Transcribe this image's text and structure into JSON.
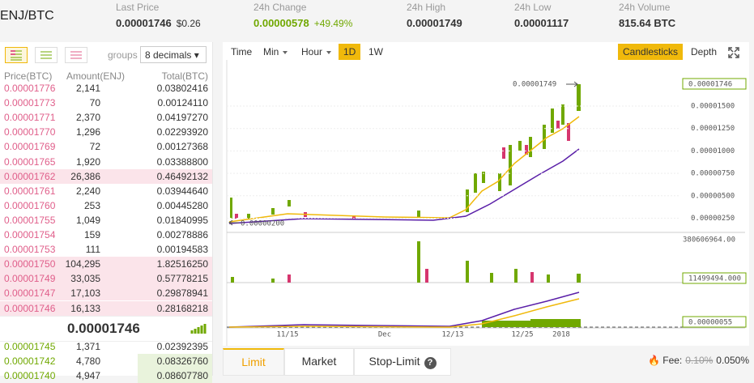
{
  "header": {
    "pair": "ENJ/BTC",
    "stats": [
      {
        "label": "Last Price",
        "value": "0.00001746",
        "extra": "$0.26"
      },
      {
        "label": "24h Change",
        "value": "0.00000578",
        "extra": "+49.49%"
      },
      {
        "label": "24h High",
        "value": "0.00001749"
      },
      {
        "label": "24h Low",
        "value": "0.00001117"
      },
      {
        "label": "24h Volume",
        "value": "815.64 BTC"
      }
    ]
  },
  "orderbook": {
    "groups": "groups",
    "decimals": "8 decimals ▾",
    "columns": [
      "Price(BTC)",
      "Amount(ENJ)",
      "Total(BTC)"
    ],
    "asks": [
      [
        "0.00001776",
        "2,141",
        "0.03802416"
      ],
      [
        "0.00001773",
        "70",
        "0.00124110"
      ],
      [
        "0.00001771",
        "2,370",
        "0.04197270"
      ],
      [
        "0.00001770",
        "1,296",
        "0.02293920"
      ],
      [
        "0.00001769",
        "72",
        "0.00127368"
      ],
      [
        "0.00001765",
        "1,920",
        "0.03388800"
      ],
      [
        "0.00001762",
        "26,386",
        "0.46492132"
      ],
      [
        "0.00001761",
        "2,240",
        "0.03944640"
      ],
      [
        "0.00001760",
        "253",
        "0.00445280"
      ],
      [
        "0.00001755",
        "1,049",
        "0.01840995"
      ],
      [
        "0.00001754",
        "159",
        "0.00278886"
      ],
      [
        "0.00001753",
        "111",
        "0.00194583"
      ],
      [
        "0.00001750",
        "104,295",
        "1.82516250"
      ],
      [
        "0.00001749",
        "33,035",
        "0.57778215"
      ],
      [
        "0.00001747",
        "17,103",
        "0.29878941"
      ],
      [
        "0.00001746",
        "16,133",
        "0.28168218"
      ]
    ],
    "last_price": "0.00001746",
    "bids": [
      [
        "0.00001745",
        "1,371",
        "0.02392395"
      ],
      [
        "0.00001742",
        "4,780",
        "0.08326760"
      ],
      [
        "0.00001740",
        "4,947",
        "0.08607780"
      ]
    ]
  },
  "chart": {
    "intervals": [
      "Time",
      "Min",
      "Hour",
      "1D",
      "1W"
    ],
    "views": [
      "Candlesticks",
      "Depth"
    ],
    "price_labels": [
      "0.00001500",
      "0.00001250",
      "0.00001000",
      "0.00000750",
      "0.00000500",
      "0.00000250"
    ],
    "current_price": "0.00001746",
    "high_note": "0.00001749",
    "low_note": "0.00000200",
    "volume_label": "380606964.00",
    "current_volume": "11499494.000",
    "current_macd": "0.00000055",
    "dates": [
      "11/15",
      "Dec",
      "12/13",
      "12/25",
      "2018"
    ]
  },
  "order_form": {
    "tabs": [
      "Limit",
      "Market",
      "Stop-Limit"
    ],
    "help": "?",
    "fee_label": "Fee:",
    "fee_old": "0.10%",
    "fee_new": "0.050%"
  }
}
